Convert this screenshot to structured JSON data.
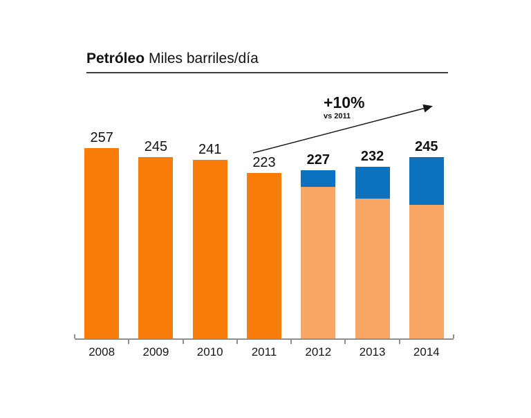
{
  "header": {
    "title": "Petróleo",
    "subtitle": "Miles barriles/día"
  },
  "annotation": {
    "label": "+10%",
    "sublabel": "vs 2011"
  },
  "colors": {
    "orange": "#F87C0A",
    "lightOrange": "#F9A665",
    "blue": "#0B72C2",
    "axis": "#8F8F8F",
    "text": "#111111"
  },
  "chart_data": {
    "type": "bar",
    "stacked": true,
    "title": "Petróleo Miles barriles/día",
    "xlabel": "",
    "ylabel": "Miles barriles/día",
    "categories": [
      "2008",
      "2009",
      "2010",
      "2011",
      "2012",
      "2013",
      "2014"
    ],
    "totals": [
      257,
      245,
      241,
      223,
      227,
      232,
      245
    ],
    "series": [
      {
        "name": "orange-solid",
        "color_key": "orange",
        "values": [
          257,
          245,
          241,
          223,
          0,
          0,
          0
        ]
      },
      {
        "name": "light-orange-base",
        "color_key": "lightOrange",
        "values": [
          0,
          0,
          0,
          0,
          205,
          189,
          180
        ]
      },
      {
        "name": "blue-top",
        "color_key": "blue",
        "values": [
          0,
          0,
          0,
          0,
          22,
          43,
          65
        ]
      }
    ],
    "bold_value_labels": [
      false,
      false,
      false,
      false,
      true,
      true,
      true
    ],
    "annotation": {
      "label": "+10%",
      "sublabel": "vs 2011"
    },
    "ylim": [
      0,
      260
    ],
    "legend": false,
    "gridlines": false
  }
}
